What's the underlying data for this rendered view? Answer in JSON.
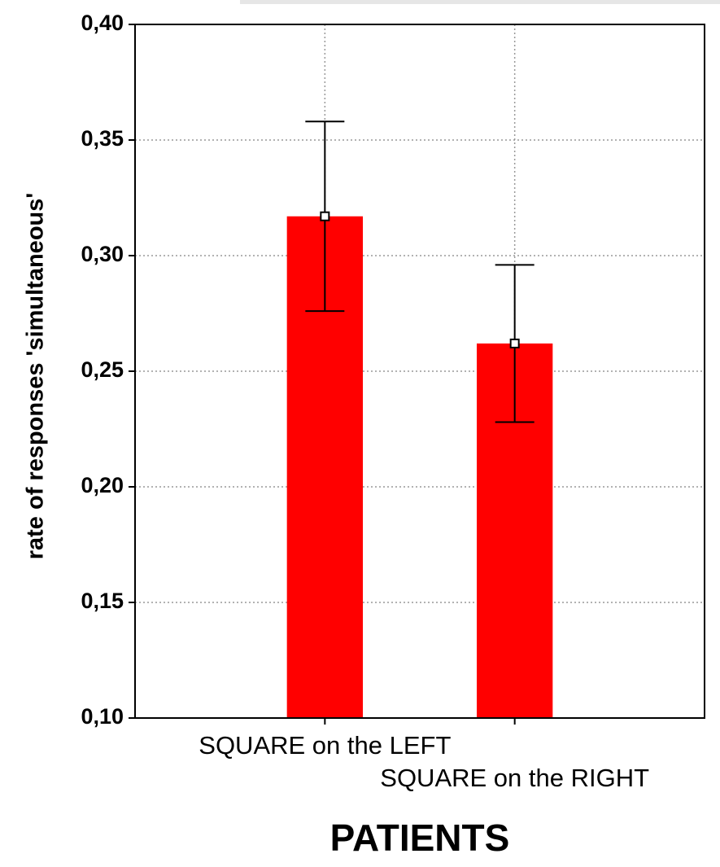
{
  "chart_data": {
    "type": "bar",
    "x_label": "PATIENTS",
    "y_label": "rate of responses 'simultaneous'",
    "categories": [
      "SQUARE on the LEFT",
      "SQUARE on the RIGHT"
    ],
    "values": [
      0.317,
      0.262
    ],
    "errors": [
      0.041,
      0.034
    ],
    "color": "#ff0000",
    "ylim": [
      0.1,
      0.4
    ],
    "yticks": [
      {
        "value": 0.1,
        "label": "0,10"
      },
      {
        "value": 0.15,
        "label": "0,15"
      },
      {
        "value": 0.2,
        "label": "0,20"
      },
      {
        "value": 0.25,
        "label": "0,25"
      },
      {
        "value": 0.3,
        "label": "0,30"
      },
      {
        "value": 0.35,
        "label": "0,35"
      },
      {
        "value": 0.4,
        "label": "0,40"
      }
    ],
    "grid": true
  }
}
